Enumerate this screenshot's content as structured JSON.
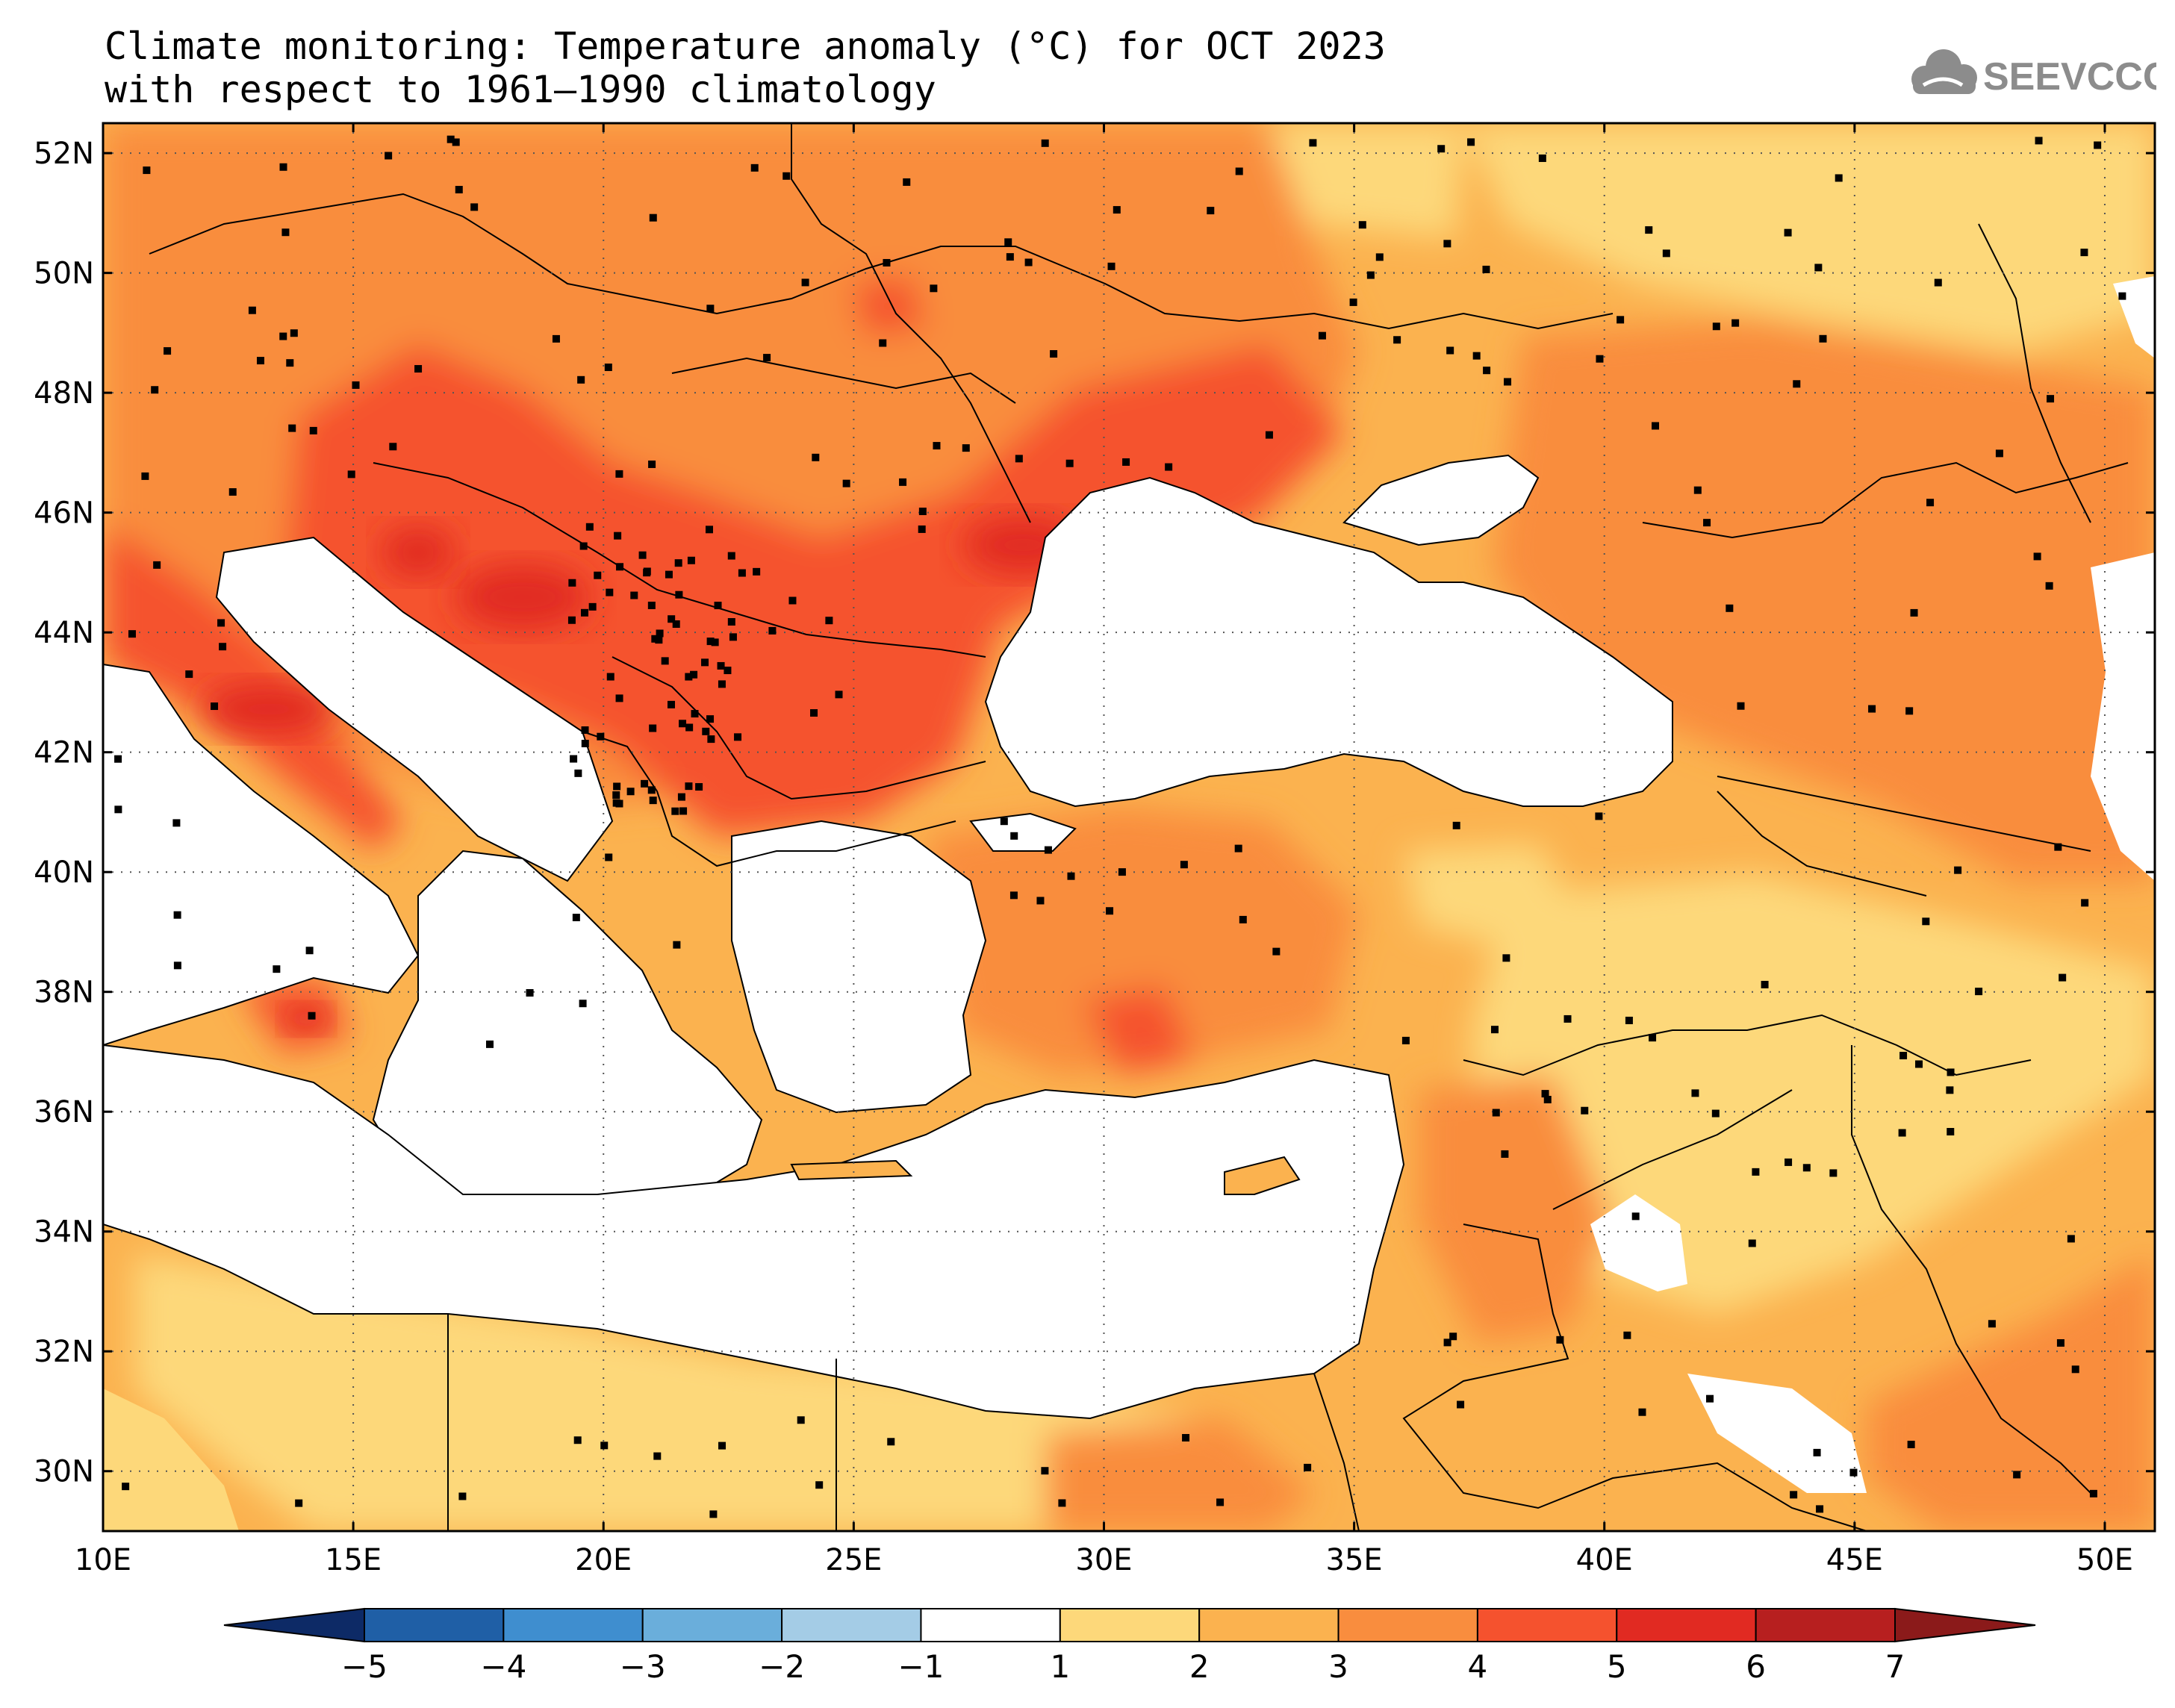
{
  "title": {
    "line1": "Climate monitoring: Temperature anomaly (°C) for OCT 2023",
    "line2": "with respect to 1961–1990 climatology"
  },
  "logo": {
    "text": "SEEVCCC"
  },
  "map": {
    "lon_range": [
      10,
      51
    ],
    "lat_range": [
      29,
      52.5
    ],
    "lon_labels": [
      "10E",
      "15E",
      "20E",
      "25E",
      "30E",
      "35E",
      "40E",
      "45E",
      "50E"
    ],
    "lat_labels": [
      "52N",
      "50N",
      "48N",
      "46N",
      "44N",
      "42N",
      "40N",
      "38N",
      "36N",
      "34N",
      "32N",
      "30N"
    ]
  },
  "colorbar": {
    "tick_labels": [
      "−5",
      "−4",
      "−3",
      "−2",
      "−1",
      "1",
      "2",
      "3",
      "4",
      "5",
      "6",
      "7"
    ],
    "colors": {
      "below_min": "#0d2a66",
      "bins": [
        "#1f5fa6",
        "#3f8ecf",
        "#6aaedb",
        "#a4cce6",
        "#ffffff",
        "#fdd87a",
        "#fbb24f",
        "#f98d3e",
        "#f5522e",
        "#e12a22",
        "#b71f1f"
      ],
      "above_max": "#8b1a1a"
    }
  }
}
